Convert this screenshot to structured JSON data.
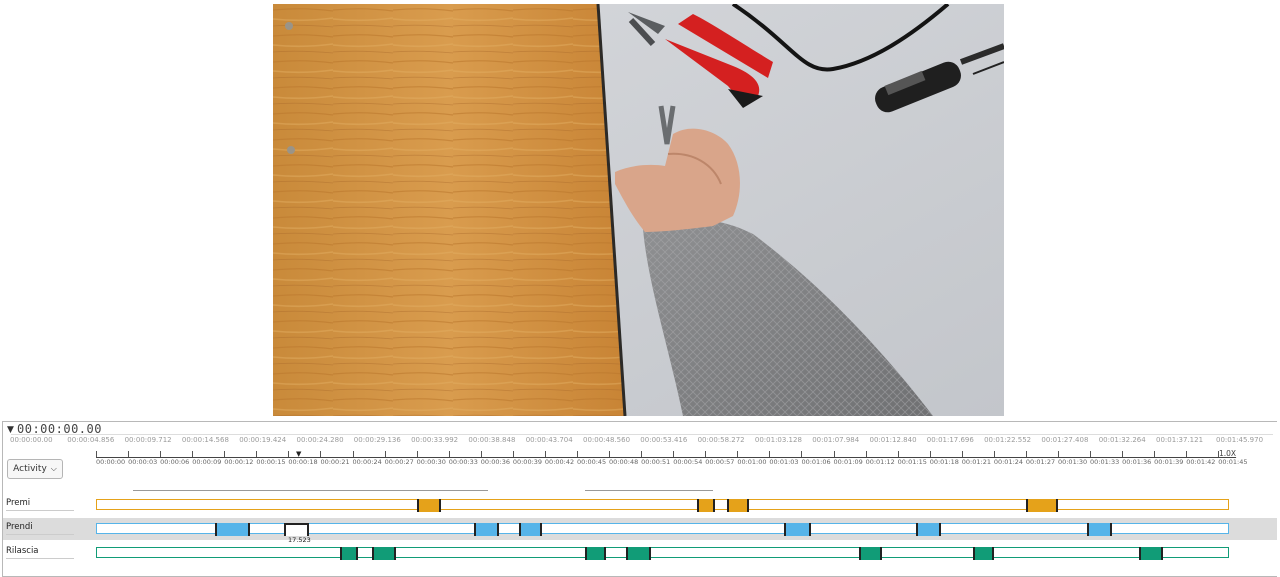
{
  "timecode": "00:00:00.00",
  "toggle_glyph": "▼",
  "activity_button": {
    "label": "Activity",
    "chevron_icon": "chevron-down-icon"
  },
  "zoom_level": "1.0X",
  "top_ruler_ticks": [
    "00:00:00.00",
    "00:00:04.856",
    "00:00:09.712",
    "00:00:14.568",
    "00:00:19.424",
    "00:00:24.280",
    "00:00:29.136",
    "00:00:33.992",
    "00:00:38.848",
    "00:00:43.704",
    "00:00:48.560",
    "00:00:53.416",
    "00:00:58.272",
    "00:01:03.128",
    "00:01:07.984",
    "00:01:12.840",
    "00:01:17.696",
    "00:01:22.552",
    "00:01:27.408",
    "00:01:32.264",
    "00:01:37.121",
    "00:01:45.970"
  ],
  "bottom_ruler_ticks": [
    "00:00:00",
    "00:00:03",
    "00:00:06",
    "00:00:09",
    "00:00:12",
    "00:00:15",
    "00:00:18",
    "00:00:21",
    "00:00:24",
    "00:00:27",
    "00:00:30",
    "00:00:33",
    "00:00:36",
    "00:00:39",
    "00:00:42",
    "00:00:45",
    "00:00:48",
    "00:00:51",
    "00:00:54",
    "00:00:57",
    "00:01:00",
    "00:01:03",
    "00:01:06",
    "00:01:09",
    "00:01:12",
    "00:01:15",
    "00:01:18",
    "00:01:21",
    "00:01:24",
    "00:01:27",
    "00:01:30",
    "00:01:33",
    "00:01:36",
    "00:01:39",
    "00:01:42",
    "00:01:45"
  ],
  "colors": {
    "premi": "#e5a21a",
    "prendi": "#56b4e9",
    "rilascia": "#119c77",
    "playhead": "#222222"
  },
  "tracks": [
    {
      "name": "Premi",
      "segments": [
        {
          "start": 29.9,
          "end": 32.2
        },
        {
          "start": 56.1,
          "end": 57.8
        },
        {
          "start": 58.9,
          "end": 61.0
        },
        {
          "start": 86.9,
          "end": 89.9
        }
      ]
    },
    {
      "name": "Prendi",
      "selected": true,
      "segments": [
        {
          "start": 11.0,
          "end": 14.3
        },
        {
          "start": 17.5,
          "end": 19.8,
          "label": "17.523",
          "selected": true
        },
        {
          "start": 35.3,
          "end": 37.6
        },
        {
          "start": 39.5,
          "end": 41.6
        },
        {
          "start": 64.3,
          "end": 66.8
        },
        {
          "start": 76.6,
          "end": 79.0
        },
        {
          "start": 92.6,
          "end": 95.0
        }
      ]
    },
    {
      "name": "Rilascia",
      "segments": [
        {
          "start": 22.7,
          "end": 24.4
        },
        {
          "start": 25.7,
          "end": 28.0
        },
        {
          "start": 45.7,
          "end": 47.6
        },
        {
          "start": 49.5,
          "end": 51.8
        },
        {
          "start": 71.3,
          "end": 73.4
        },
        {
          "start": 82.0,
          "end": 83.9
        },
        {
          "start": 97.5,
          "end": 99.7
        }
      ]
    }
  ]
}
